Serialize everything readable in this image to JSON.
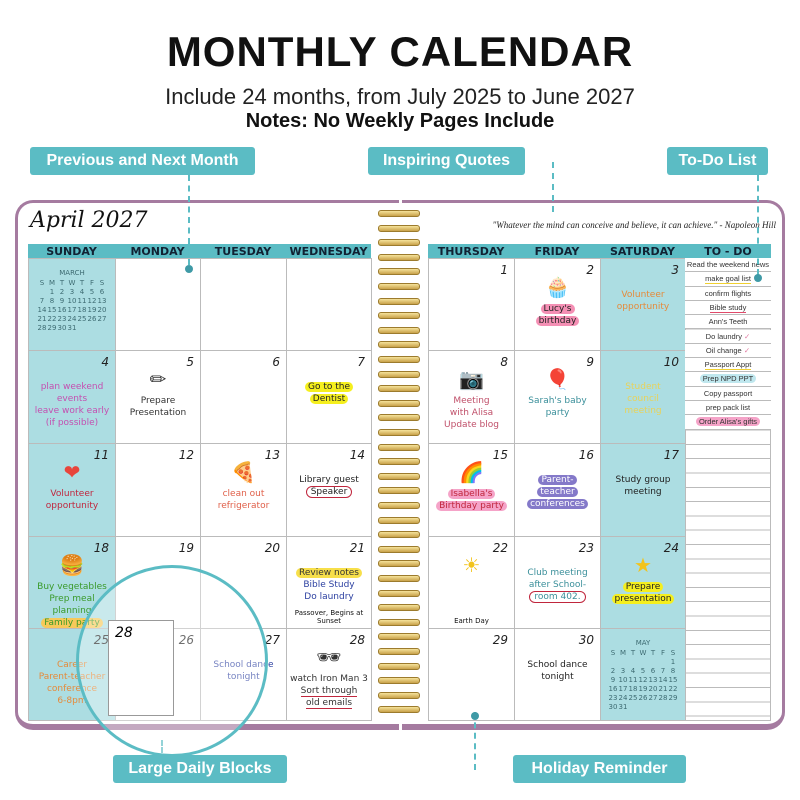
{
  "header": {
    "title": "MONTHLY CALENDAR",
    "subtitle": "Include 24 months, from July 2025 to June 2027",
    "notes": "Notes: No Weekly Pages Include"
  },
  "callouts": {
    "prev_next": "Previous and Next Month",
    "quotes": "Inspiring Quotes",
    "todo": "To-Do List",
    "large_blocks": "Large Daily Blocks",
    "holiday": "Holiday Reminder"
  },
  "colors": {
    "accent": "#5bbcc4",
    "weekend": "#acdde2",
    "cover": "#a57ba0",
    "coil": "#d9b85a"
  },
  "left": {
    "month": "April 2027",
    "days": [
      "SUNDAY",
      "MONDAY",
      "TUESDAY",
      "WEDNESDAY"
    ]
  },
  "right": {
    "quote": "\"Whatever the mind can conceive and believe, it can achieve.\" - Napoleon Hill",
    "days": [
      "THURSDAY",
      "FRIDAY",
      "SATURDAY",
      "TO - DO"
    ]
  },
  "mini_prev": {
    "name": "MARCH",
    "dow": [
      "S",
      "M",
      "T",
      "W",
      "T",
      "F",
      "S"
    ],
    "weeks": [
      [
        "",
        "1",
        "2",
        "3",
        "4",
        "5",
        "6"
      ],
      [
        "7",
        "8",
        "9",
        "10",
        "11",
        "12",
        "13"
      ],
      [
        "14",
        "15",
        "16",
        "17",
        "18",
        "19",
        "20"
      ],
      [
        "21",
        "22",
        "23",
        "24",
        "25",
        "26",
        "27"
      ],
      [
        "28",
        "29",
        "30",
        "31",
        "",
        "",
        ""
      ]
    ]
  },
  "mini_next": {
    "name": "MAY",
    "dow": [
      "S",
      "M",
      "T",
      "W",
      "T",
      "F",
      "S"
    ],
    "weeks": [
      [
        "",
        "",
        "",
        "",
        "",
        "",
        "1"
      ],
      [
        "2",
        "3",
        "4",
        "5",
        "6",
        "7",
        "8"
      ],
      [
        "9",
        "10",
        "11",
        "12",
        "13",
        "14",
        "15"
      ],
      [
        "16",
        "17",
        "18",
        "19",
        "20",
        "21",
        "22"
      ],
      [
        "23",
        "24",
        "25",
        "26",
        "27",
        "28",
        "29"
      ],
      [
        "30",
        "31",
        "",
        "",
        "",
        "",
        ""
      ]
    ]
  },
  "left_cells": [
    [
      {
        "mini": "prev"
      },
      {},
      {},
      {}
    ],
    [
      {
        "n": "4",
        "notes": [
          {
            "t": "plan weekend events",
            "c": "#c44fb0"
          },
          {
            "t": "leave work early",
            "c": "#c44fb0"
          },
          {
            "t": "(if possible)",
            "c": "#c44fb0"
          }
        ]
      },
      {
        "n": "5",
        "icon": "pencil",
        "notes": [
          {
            "t": "Prepare",
            "c": "#333"
          },
          {
            "t": "Presentation",
            "c": "#333"
          }
        ]
      },
      {
        "n": "6",
        "notes": []
      },
      {
        "n": "7",
        "notes": [
          {
            "t": "Go to the",
            "c": "#222",
            "h": "#f5ef1e"
          },
          {
            "t": "Dentist",
            "c": "#222",
            "h": "#f5ef1e"
          }
        ]
      }
    ],
    [
      {
        "n": "11",
        "icon": "heart",
        "notes": [
          {
            "t": "Volunteer",
            "c": "#c0263d"
          },
          {
            "t": "opportunity",
            "c": "#c0263d"
          }
        ]
      },
      {
        "n": "12"
      },
      {
        "n": "13",
        "icon": "pizza",
        "notes": [
          {
            "t": "clean out",
            "c": "#e0604a"
          },
          {
            "t": "refrigerator",
            "c": "#e0604a"
          }
        ]
      },
      {
        "n": "14",
        "notes": [
          {
            "t": "Library guest",
            "c": "#222"
          },
          {
            "t": "Speaker",
            "c": "#222",
            "o": "#c0263d"
          }
        ]
      }
    ],
    [
      {
        "n": "18",
        "icon": "burger",
        "notes": [
          {
            "t": "Buy vegetables",
            "c": "#3a9a2a"
          },
          {
            "t": "Prep meal planning",
            "c": "#3a9a2a"
          },
          {
            "t": "Family party",
            "c": "#3a9a2a",
            "h": "#f7c95a"
          }
        ]
      },
      {
        "n": "19"
      },
      {
        "n": "20"
      },
      {
        "n": "21",
        "notes": [
          {
            "t": "Review notes",
            "c": "#333",
            "h": "#f7df4a"
          },
          {
            "t": "Bible Study",
            "c": "#2b3fa0"
          },
          {
            "t": "Do laundry",
            "c": "#2b3fa0"
          }
        ],
        "holiday": "Passover, Begins at Sunset"
      }
    ],
    [
      {
        "n": "25",
        "notes": [
          {
            "t": "Career",
            "c": "#e58a3a"
          },
          {
            "t": "Parent-teacher",
            "c": "#e58a3a"
          },
          {
            "t": "conference",
            "c": "#e58a3a"
          },
          {
            "t": "6-8pm",
            "c": "#e58a3a"
          }
        ]
      },
      {
        "n": "26"
      },
      {
        "n": "27",
        "notes": [
          {
            "t": "School dance",
            "c": "#2b3fa0"
          },
          {
            "t": "tonight",
            "c": "#2b3fa0"
          }
        ]
      },
      {
        "n": "28",
        "icon": "sunglasses",
        "notes": [
          {
            "t": "watch Iron Man 3",
            "c": "#333"
          },
          {
            "t": "Sort through",
            "c": "#333",
            "u": "#c0263d"
          },
          {
            "t": "old emails",
            "c": "#333",
            "u": "#c0263d"
          }
        ]
      }
    ]
  ],
  "right_cells": [
    [
      {
        "n": "1"
      },
      {
        "n": "2",
        "notes": [
          {
            "t": "Lucy's",
            "c": "#222",
            "h": "#f48fb4"
          },
          {
            "t": "birthday",
            "c": "#222",
            "h": "#f48fb4"
          }
        ],
        "icon": "cupcake"
      },
      {
        "n": "3",
        "notes": [
          {
            "t": "Volunteer",
            "c": "#e58a3a"
          },
          {
            "t": "opportunity",
            "c": "#e58a3a"
          }
        ]
      }
    ],
    [
      {
        "n": "8",
        "icon": "camera",
        "notes": [
          {
            "t": "Meeting",
            "c": "#c0506a"
          },
          {
            "t": "with Alisa",
            "c": "#c0506a"
          },
          {
            "t": "Update blog",
            "c": "#c0506a"
          }
        ]
      },
      {
        "n": "9",
        "icon": "balloon",
        "notes": [
          {
            "t": "Sarah's baby",
            "c": "#3a8f9a"
          },
          {
            "t": "party",
            "c": "#3a8f9a"
          }
        ]
      },
      {
        "n": "10",
        "notes": [
          {
            "t": "Student",
            "c": "#e8d25a"
          },
          {
            "t": "council",
            "c": "#e8d25a"
          },
          {
            "t": "meeting",
            "c": "#e8d25a"
          }
        ]
      }
    ],
    [
      {
        "n": "15",
        "icon": "rainbow",
        "notes": [
          {
            "t": "Isabella's",
            "c": "#c0263d",
            "h": "#f5a3c8"
          },
          {
            "t": "Birthday party",
            "c": "#c0263d",
            "h": "#f5a3c8"
          }
        ]
      },
      {
        "n": "16",
        "notes": [
          {
            "t": "Parent-",
            "c": "#fff",
            "h": "#8479c9"
          },
          {
            "t": "teacher",
            "c": "#fff",
            "h": "#8479c9"
          },
          {
            "t": "conferences",
            "c": "#fff",
            "h": "#8479c9"
          }
        ]
      },
      {
        "n": "17",
        "notes": [
          {
            "t": "Study group",
            "c": "#222"
          },
          {
            "t": "meeting",
            "c": "#222"
          }
        ]
      }
    ],
    [
      {
        "n": "22",
        "icon": "sun",
        "holiday": "Earth Day"
      },
      {
        "n": "23",
        "notes": [
          {
            "t": "Club meeting",
            "c": "#3a8f9a"
          },
          {
            "t": "after School-",
            "c": "#3a8f9a"
          },
          {
            "t": "room 402.",
            "c": "#3a8f9a",
            "o": "#c0263d"
          }
        ]
      },
      {
        "n": "24",
        "icon": "star",
        "notes": [
          {
            "t": "Prepare",
            "c": "#222",
            "h": "#f5ef1e"
          },
          {
            "t": "presentation",
            "c": "#222",
            "h": "#f5ef1e"
          }
        ]
      }
    ],
    [
      {
        "n": "29"
      },
      {
        "n": "30",
        "notes": [
          {
            "t": "School dance",
            "c": "#222"
          },
          {
            "t": "tonight",
            "c": "#222"
          }
        ]
      },
      {
        "mini": "next"
      }
    ]
  ],
  "todo": [
    {
      "t": "Read the weekend news"
    },
    {
      "t": "make goal list",
      "u": "#f0d030"
    },
    {
      "t": "confirm flights"
    },
    {
      "t": "Bible study",
      "u": "#e04a6a"
    },
    {
      "t": "Ann's Teeth"
    },
    {
      "t": "Do laundry",
      "check": true
    },
    {
      "t": "Oil change",
      "check": true
    },
    {
      "t": "Passport Appt",
      "u": "#f0d030"
    },
    {
      "t": "Prep NPD PPT",
      "h": "#bfe7ee"
    },
    {
      "t": "Copy passport"
    },
    {
      "t": "prep pack list"
    },
    {
      "t": "Order Alisa's gifts",
      "h": "#f5a3c8"
    }
  ],
  "magnifier": {
    "day": "28"
  }
}
